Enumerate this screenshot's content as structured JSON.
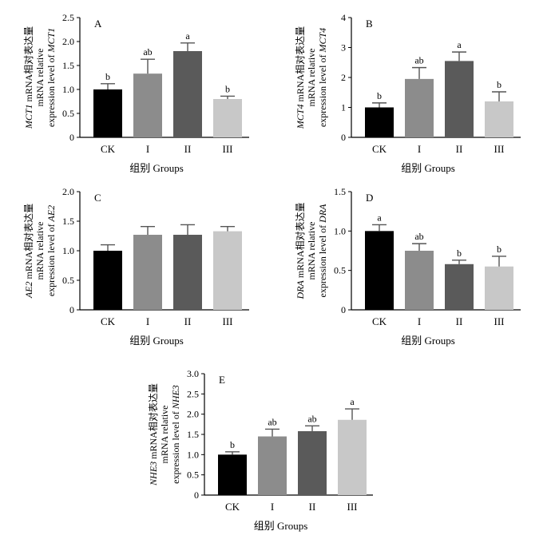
{
  "figure": {
    "x_axis_title": "组别  Groups",
    "colors": {
      "CK": "#000000",
      "I": "#8c8c8c",
      "II": "#5a5a5a",
      "III": "#c8c8c8",
      "axis": "#000000",
      "error": "#555555"
    }
  },
  "chart_data": [
    {
      "panel": "A",
      "type": "bar",
      "gene": "MCT1",
      "ylabel": [
        "MCT1 mRNA相对表达量",
        "mRNA relative",
        "expression level of MCT1"
      ],
      "xlabel": "组别  Groups",
      "categories": [
        "CK",
        "I",
        "II",
        "III"
      ],
      "values": [
        1.0,
        1.33,
        1.8,
        0.8
      ],
      "errors": [
        0.12,
        0.3,
        0.17,
        0.06
      ],
      "significance": [
        "b",
        "ab",
        "a",
        "b"
      ],
      "ylim": [
        0,
        2.5
      ],
      "yticks": [
        0,
        0.5,
        1.0,
        1.5,
        2.0,
        2.5
      ],
      "tick_labels": [
        "0",
        "0.5",
        "1.0",
        "1.5",
        "2.0",
        "2.5"
      ]
    },
    {
      "panel": "B",
      "type": "bar",
      "gene": "MCT4",
      "ylabel": [
        "MCT4 mRNA相对表达量",
        "mRNA relative",
        "expression level of MCT4"
      ],
      "xlabel": "组别  Groups",
      "categories": [
        "CK",
        "I",
        "II",
        "III"
      ],
      "values": [
        1.0,
        1.95,
        2.55,
        1.2
      ],
      "errors": [
        0.15,
        0.38,
        0.3,
        0.32
      ],
      "significance": [
        "b",
        "ab",
        "a",
        "b"
      ],
      "ylim": [
        0,
        4
      ],
      "yticks": [
        0,
        1,
        2,
        3,
        4
      ],
      "tick_labels": [
        "0",
        "1",
        "2",
        "3",
        "4"
      ]
    },
    {
      "panel": "C",
      "type": "bar",
      "gene": "AE2",
      "ylabel": [
        "AE2 mRNA相对表达量",
        "mRNA relative",
        "expression level of AE2"
      ],
      "xlabel": "组别  Groups",
      "categories": [
        "CK",
        "I",
        "II",
        "III"
      ],
      "values": [
        1.0,
        1.27,
        1.27,
        1.33
      ],
      "errors": [
        0.1,
        0.14,
        0.17,
        0.08
      ],
      "significance": [
        "",
        "",
        "",
        ""
      ],
      "ylim": [
        0,
        2.0
      ],
      "yticks": [
        0,
        0.5,
        1.0,
        1.5,
        2.0
      ],
      "tick_labels": [
        "0",
        "0.5",
        "1.0",
        "1.5",
        "2.0"
      ]
    },
    {
      "panel": "D",
      "type": "bar",
      "gene": "DRA",
      "ylabel": [
        "DRA mRNA相对表达量",
        "mRNA relative",
        "expression level of DRA"
      ],
      "xlabel": "组别  Groups",
      "categories": [
        "CK",
        "I",
        "II",
        "III"
      ],
      "values": [
        1.0,
        0.75,
        0.58,
        0.55
      ],
      "errors": [
        0.08,
        0.09,
        0.05,
        0.13
      ],
      "significance": [
        "a",
        "ab",
        "b",
        "b"
      ],
      "ylim": [
        0,
        1.5
      ],
      "yticks": [
        0,
        0.5,
        1.0,
        1.5
      ],
      "tick_labels": [
        "0",
        "0.5",
        "1.0",
        "1.5"
      ]
    },
    {
      "panel": "E",
      "type": "bar",
      "gene": "NHE3",
      "ylabel": [
        "NHE3 mRNA相对表达量",
        "mRNA relative",
        "expression level of NHE3"
      ],
      "xlabel": "组别  Groups",
      "categories": [
        "CK",
        "I",
        "II",
        "III"
      ],
      "values": [
        1.0,
        1.45,
        1.58,
        1.86
      ],
      "errors": [
        0.07,
        0.18,
        0.13,
        0.27
      ],
      "significance": [
        "b",
        "ab",
        "ab",
        "a"
      ],
      "ylim": [
        0,
        3.0
      ],
      "yticks": [
        0,
        0.5,
        1.0,
        1.5,
        2.0,
        2.5,
        3.0
      ],
      "tick_labels": [
        "0",
        "0.5",
        "1.0",
        "1.5",
        "2.0",
        "2.5",
        "3.0"
      ]
    }
  ]
}
